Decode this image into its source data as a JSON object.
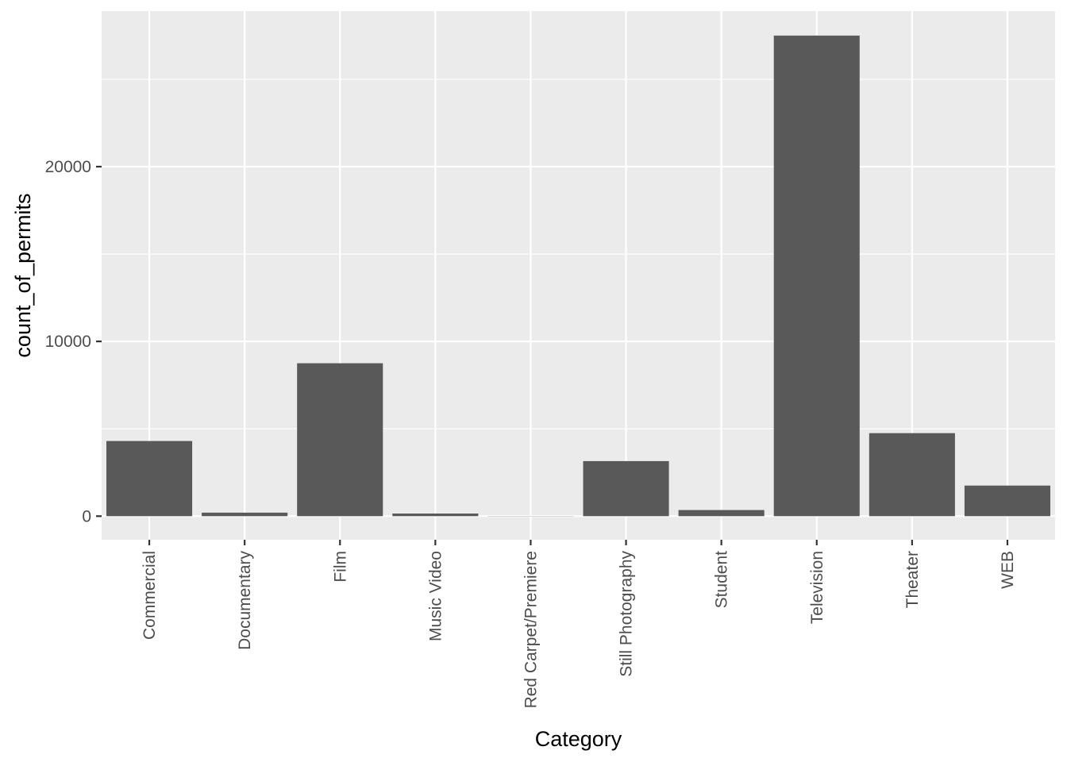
{
  "chart_data": {
    "type": "bar",
    "title": "",
    "xlabel": "Category",
    "ylabel": "count_of_permits",
    "categories": [
      "Commercial",
      "Documentary",
      "Film",
      "Music Video",
      "Red Carpet/Premiere",
      "Still Photography",
      "Student",
      "Television",
      "Theater",
      "WEB"
    ],
    "values": [
      4300,
      200,
      8750,
      150,
      10,
      3150,
      350,
      27500,
      4750,
      1750
    ],
    "ylim": [
      -1350,
      28900
    ],
    "yticks": [
      0,
      10000,
      20000
    ],
    "ytick_labels": [
      "0",
      "10000",
      "20000"
    ],
    "grid": true,
    "legend": "none",
    "colors": {
      "panel": "#ebebeb",
      "grid_major": "#ffffff",
      "bar": "#595959",
      "tick_text": "#4d4d4d",
      "tick_mark": "#333333",
      "title_text": "#000000"
    }
  }
}
